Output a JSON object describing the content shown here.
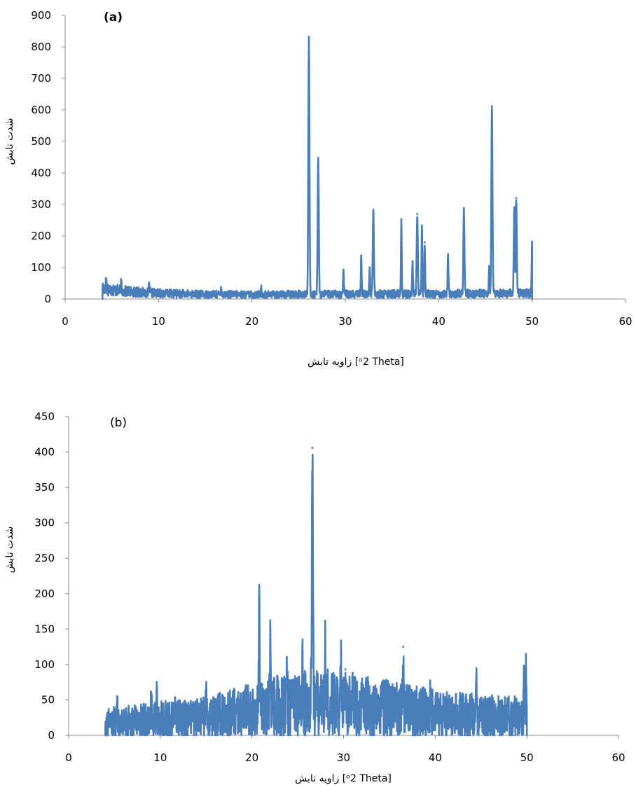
{
  "chart_data": [
    {
      "type": "line",
      "panel_label": "(a)",
      "ylabel": "شدت تابش",
      "xlabel": "زاویه تابش [ᵒ2 Theta]",
      "xlim": [
        0,
        60
      ],
      "ylim": [
        0,
        900
      ],
      "xticks": [
        0,
        10,
        20,
        30,
        40,
        50,
        60
      ],
      "yticks": [
        0,
        100,
        200,
        300,
        400,
        500,
        600,
        700,
        800,
        900
      ],
      "color": "#4a7ebb",
      "baseline": {
        "x": [
          4,
          6,
          10,
          15,
          20,
          25,
          26,
          50
        ],
        "y": [
          35,
          25,
          18,
          15,
          14,
          15,
          15,
          18
        ]
      },
      "peaks": [
        {
          "x": 4.4,
          "y": 65
        },
        {
          "x": 6.0,
          "y": 50
        },
        {
          "x": 9.0,
          "y": 45
        },
        {
          "x": 16.7,
          "y": 38
        },
        {
          "x": 21.0,
          "y": 33
        },
        {
          "x": 26.1,
          "y": 832
        },
        {
          "x": 27.1,
          "y": 444
        },
        {
          "x": 29.8,
          "y": 82
        },
        {
          "x": 31.7,
          "y": 138
        },
        {
          "x": 32.6,
          "y": 100
        },
        {
          "x": 33.0,
          "y": 276
        },
        {
          "x": 36.0,
          "y": 245
        },
        {
          "x": 37.2,
          "y": 120
        },
        {
          "x": 37.7,
          "y": 270
        },
        {
          "x": 38.2,
          "y": 233
        },
        {
          "x": 38.5,
          "y": 180
        },
        {
          "x": 41.0,
          "y": 142
        },
        {
          "x": 42.7,
          "y": 280
        },
        {
          "x": 45.4,
          "y": 98
        },
        {
          "x": 45.7,
          "y": 612
        },
        {
          "x": 48.1,
          "y": 280
        },
        {
          "x": 48.3,
          "y": 320
        },
        {
          "x": 50.0,
          "y": 170
        }
      ]
    },
    {
      "type": "line",
      "panel_label": "(b)",
      "ylabel": "شدت تابش",
      "xlabel": "زاویه تابش [ᵒ2 Theta]",
      "xlim": [
        0,
        60
      ],
      "ylim": [
        0,
        450
      ],
      "xticks": [
        0,
        10,
        20,
        30,
        40,
        50,
        60
      ],
      "yticks": [
        0,
        50,
        100,
        150,
        200,
        250,
        300,
        350,
        400,
        450
      ],
      "color": "#4a7ebb",
      "baseline": {
        "x": [
          4,
          10,
          15,
          20,
          25,
          28,
          35,
          40,
          50
        ],
        "y": [
          18,
          22,
          25,
          35,
          45,
          45,
          38,
          30,
          25
        ]
      },
      "peaks": [
        {
          "x": 5.3,
          "y": 55
        },
        {
          "x": 9.0,
          "y": 60
        },
        {
          "x": 9.6,
          "y": 75
        },
        {
          "x": 11.6,
          "y": 52
        },
        {
          "x": 15.0,
          "y": 56
        },
        {
          "x": 20.8,
          "y": 187
        },
        {
          "x": 22.0,
          "y": 133
        },
        {
          "x": 23.8,
          "y": 110
        },
        {
          "x": 25.5,
          "y": 95
        },
        {
          "x": 26.6,
          "y": 406
        },
        {
          "x": 28.0,
          "y": 150
        },
        {
          "x": 29.7,
          "y": 95
        },
        {
          "x": 30.2,
          "y": 93
        },
        {
          "x": 31.0,
          "y": 88
        },
        {
          "x": 36.5,
          "y": 125
        },
        {
          "x": 39.5,
          "y": 63
        },
        {
          "x": 44.5,
          "y": 83
        },
        {
          "x": 49.7,
          "y": 88
        },
        {
          "x": 49.9,
          "y": 90
        }
      ]
    }
  ]
}
